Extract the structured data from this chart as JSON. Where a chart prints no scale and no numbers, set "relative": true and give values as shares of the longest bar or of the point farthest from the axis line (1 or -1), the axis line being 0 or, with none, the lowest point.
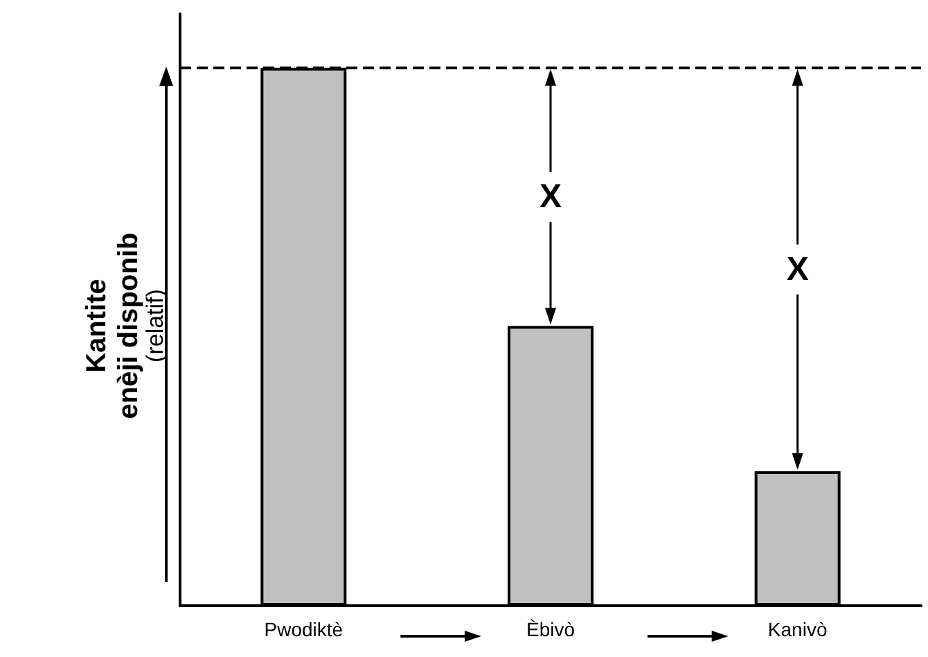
{
  "chart_data": {
    "type": "bar",
    "relative": true,
    "ylabel": "Kantite\nenèji disponib\n(relatif)",
    "categories": [
      "Pwodiktè",
      "Èbivò",
      "Kanivò"
    ],
    "values": [
      1,
      0.52,
      0.25
    ],
    "color": "#c0c0c0",
    "ref_lines": [
      {
        "axis": "y",
        "value": 1,
        "color": "#000000",
        "line_style": "dashed"
      }
    ],
    "annotations": [
      "X",
      "X"
    ],
    "grid": false
  }
}
